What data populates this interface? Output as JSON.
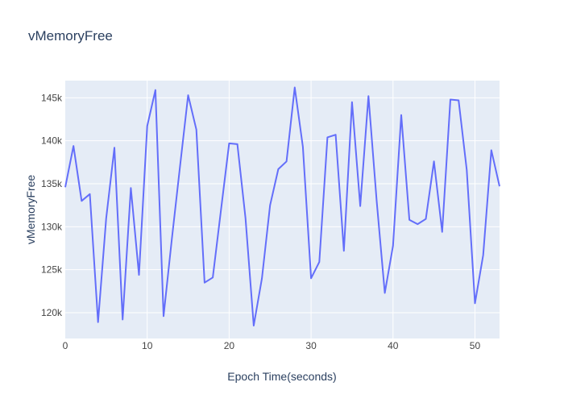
{
  "chart_data": {
    "type": "line",
    "title": "vMemoryFree",
    "xlabel": "Epoch Time(seconds)",
    "ylabel": "vMemoryFree",
    "xlim": [
      0,
      53
    ],
    "ylim": [
      117000,
      147000
    ],
    "x_ticks": [
      0,
      10,
      20,
      30,
      40,
      50
    ],
    "x_tick_labels": [
      "0",
      "10",
      "20",
      "30",
      "40",
      "50"
    ],
    "y_ticks": [
      120000,
      125000,
      130000,
      135000,
      140000,
      145000
    ],
    "y_tick_labels": [
      "120k",
      "125k",
      "130k",
      "135k",
      "140k",
      "145k"
    ],
    "grid": true,
    "legend": "none",
    "colors": {
      "line": "#636efa",
      "plot_bg": "#e5ecf6",
      "grid": "#ffffff",
      "text": "#2a3f5f",
      "axis_text": "#444444"
    },
    "series": [
      {
        "x": [
          0,
          1,
          2,
          3,
          4,
          5,
          6,
          7,
          8,
          9,
          10,
          11,
          12,
          13,
          14,
          15,
          16,
          17,
          18,
          19,
          20,
          21,
          22,
          23,
          24,
          25,
          26,
          27,
          28,
          29,
          30,
          31,
          32,
          33,
          34,
          35,
          36,
          37,
          38,
          39,
          40,
          41,
          42,
          43,
          44,
          45,
          46,
          47,
          48,
          49,
          50,
          51,
          52,
          53
        ],
        "y": [
          134600,
          139400,
          133000,
          133800,
          118900,
          131000,
          139200,
          119200,
          134500,
          124400,
          141700,
          145900,
          119600,
          128500,
          137000,
          145300,
          141300,
          123500,
          124100,
          131900,
          139700,
          139600,
          131000,
          118500,
          124000,
          132500,
          136700,
          137600,
          146200,
          139300,
          124000,
          125900,
          140400,
          140700,
          127200,
          144500,
          132400,
          145200,
          133000,
          122300,
          127800,
          143000,
          130800,
          130300,
          130900,
          137600,
          129400,
          144800,
          144700,
          136600,
          121100,
          126700,
          138900,
          134700
        ]
      }
    ]
  }
}
